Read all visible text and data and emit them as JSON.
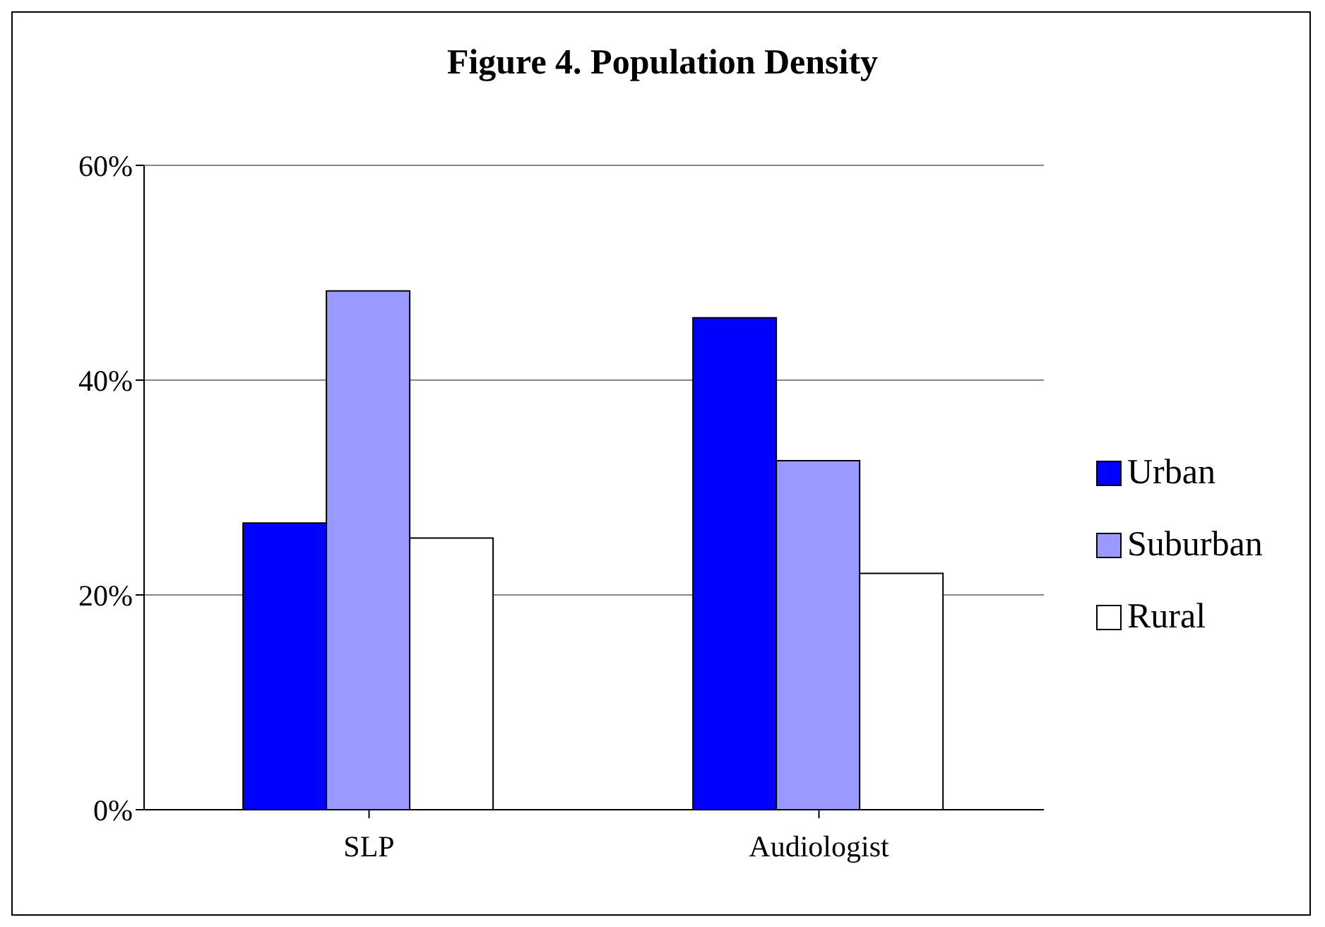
{
  "chart_data": {
    "type": "bar",
    "title": "Figure 4.  Population Density",
    "categories": [
      "SLP",
      "Audiologist"
    ],
    "series": [
      {
        "name": "Urban",
        "color": "#0000ff",
        "values": [
          26.7,
          45.8
        ]
      },
      {
        "name": "Suburban",
        "color": "#9999ff",
        "values": [
          48.3,
          32.5
        ]
      },
      {
        "name": "Rural",
        "color": "#ffffff",
        "values": [
          25.3,
          22.0
        ]
      }
    ],
    "ylim": [
      0,
      60
    ],
    "yticks": [
      {
        "value": 0,
        "label": "0%"
      },
      {
        "value": 20,
        "label": "20%"
      },
      {
        "value": 40,
        "label": "40%"
      },
      {
        "value": 60,
        "label": "60%"
      }
    ],
    "grid": "y",
    "legend": "right"
  }
}
